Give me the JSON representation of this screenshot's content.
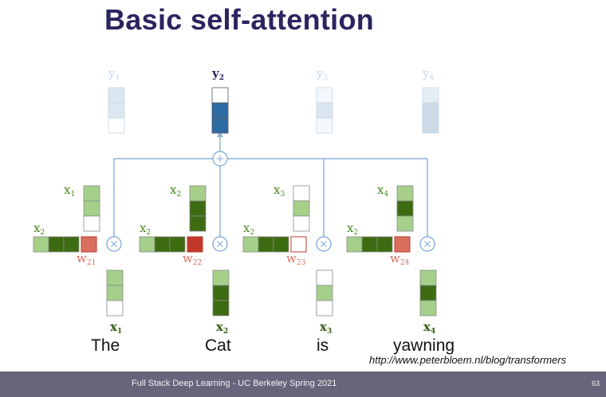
{
  "title": "Basic self-attention",
  "outputs": [
    {
      "label": "y",
      "sub": "1",
      "cells": [
        "#dbe8f2",
        "#dbe8f2",
        "#ffffff"
      ],
      "emphasis": false
    },
    {
      "label": "y",
      "sub": "2",
      "cells": [
        "#ffffff",
        "#2d6ba3",
        "#2d6ba3"
      ],
      "emphasis": true
    },
    {
      "label": "y",
      "sub": "3",
      "cells": [
        "#f4f8fc",
        "#dbe6f0",
        "#f4f8fc"
      ],
      "emphasis": false
    },
    {
      "label": "y",
      "sub": "4",
      "cells": [
        "#e6eef5",
        "#ccdbe8",
        "#ccdbe8"
      ],
      "emphasis": false
    }
  ],
  "words": [
    {
      "text": "The",
      "key_sub": "1",
      "value_sub": "1",
      "weight": "21",
      "weight_color": "#d9705f",
      "key": [
        "#a6d08a",
        "#a6d08a",
        "#ffffff"
      ],
      "value": [
        "#a6d08a",
        "#a6d08a",
        "#ffffff"
      ]
    },
    {
      "text": "Cat",
      "key_sub": "2",
      "value_sub": "2",
      "weight": "22",
      "weight_color": "#c0392b",
      "key": [
        "#a6d08a",
        "#3d6b12",
        "#3d6b12"
      ],
      "value": [
        "#a6d08a",
        "#3d6b12",
        "#3d6b12"
      ]
    },
    {
      "text": "is",
      "key_sub": "3",
      "value_sub": "3",
      "weight": "23",
      "weight_color": "#ffffff",
      "key": [
        "#ffffff",
        "#a6d08a",
        "#ffffff"
      ],
      "value": [
        "#ffffff",
        "#a6d08a",
        "#ffffff"
      ]
    },
    {
      "text": "yawning",
      "key_sub": "4",
      "value_sub": "4",
      "weight": "24",
      "weight_color": "#d9705f",
      "key": [
        "#a6d08a",
        "#3d6b12",
        "#a6d08a"
      ],
      "value": [
        "#a6d08a",
        "#3d6b12",
        "#a6d08a"
      ]
    }
  ],
  "query": {
    "label": "x",
    "sub": "2",
    "cells": [
      "#a6d08a",
      "#3d6b12",
      "#3d6b12"
    ]
  },
  "sum_symbol": "+",
  "mult_symbol": "×",
  "source": "http://www.peterbloem.nl/blog/transformers",
  "footer": {
    "text": "Full Stack Deep Learning - UC Berkeley Spring 2021",
    "page": "63"
  },
  "colors": {
    "line": "#8fb4d8",
    "green_label": "#4b8a1f",
    "dark_label": "#3a5a10",
    "red_label": "#c0392b",
    "title": "#2a2560"
  }
}
